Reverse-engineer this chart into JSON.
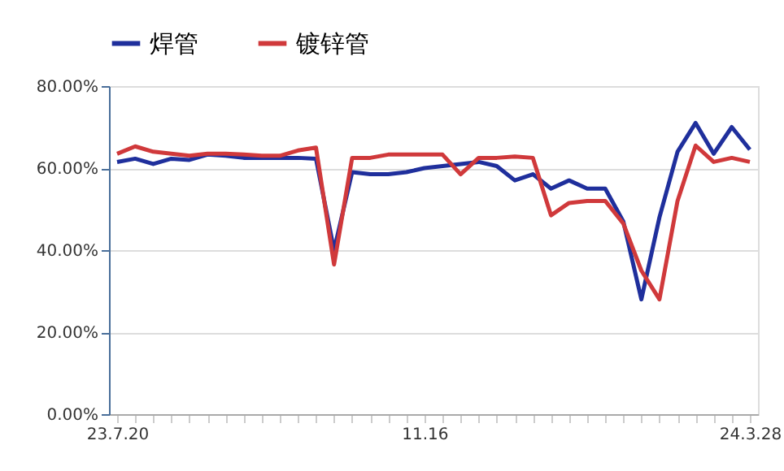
{
  "chart_data": {
    "type": "line",
    "categories": [
      "23.7.20",
      null,
      null,
      null,
      null,
      null,
      null,
      null,
      null,
      null,
      null,
      null,
      null,
      null,
      null,
      null,
      null,
      "11.16",
      null,
      null,
      null,
      null,
      null,
      null,
      null,
      null,
      null,
      null,
      null,
      null,
      null,
      null,
      null,
      null,
      null,
      "24.3.28"
    ],
    "series": [
      {
        "name": "焊管",
        "color": "#1f2f9c",
        "values": [
          61.5,
          62.3,
          61,
          62.3,
          62,
          63.3,
          63,
          62.5,
          62.5,
          62.5,
          62.5,
          62.3,
          40,
          59,
          58.5,
          58.5,
          59,
          60,
          60.5,
          61,
          61.5,
          60.5,
          57,
          58.5,
          55,
          57,
          55,
          55,
          47,
          28,
          48,
          64,
          71,
          63.5,
          70,
          64.5
        ]
      },
      {
        "name": "镀锌管",
        "color": "#d0393b",
        "values": [
          63.5,
          65.3,
          64,
          63.5,
          63,
          63.5,
          63.5,
          63.3,
          63,
          63,
          64.3,
          65,
          36.5,
          62.5,
          62.5,
          63.3,
          63.3,
          63.3,
          63.3,
          58.5,
          62.5,
          62.5,
          62.8,
          62.5,
          48.5,
          51.5,
          52,
          52,
          46.5,
          35,
          28,
          52,
          65.5,
          61.5,
          62.5,
          61.5
        ]
      }
    ],
    "ylim": [
      0,
      80
    ],
    "yticks": [
      {
        "value": 0,
        "label": "0.00%"
      },
      {
        "value": 20,
        "label": "20.00%"
      },
      {
        "value": 40,
        "label": "40.00%"
      },
      {
        "value": 60,
        "label": "60.00%"
      },
      {
        "value": 80,
        "label": "80.00%"
      }
    ],
    "grid": "y",
    "legend": "top",
    "marker": "none",
    "line_style": "solid"
  }
}
